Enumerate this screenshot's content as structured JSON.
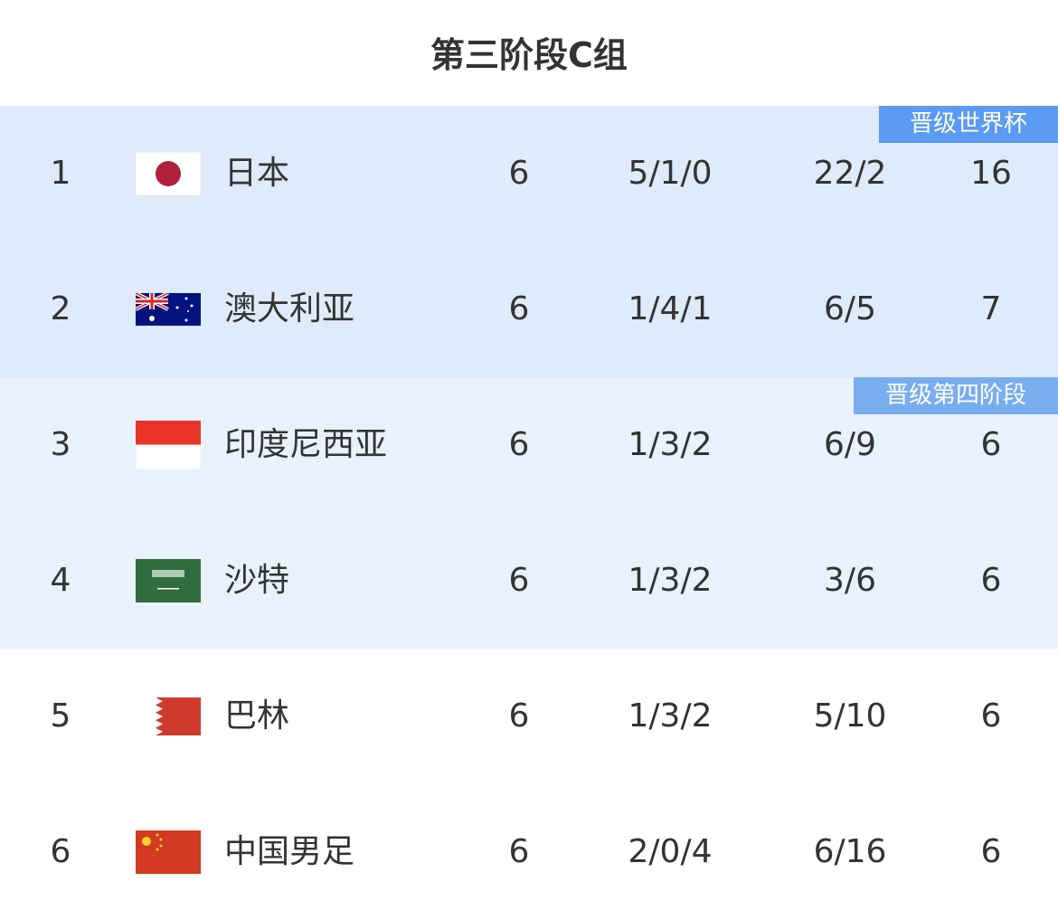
{
  "title": "第三阶段C组",
  "colors": {
    "qualified_bg": "#dfeafb",
    "playoff_bg": "#e8f2fd",
    "qualified_badge": "#5b9af5",
    "playoff_badge": "#78aeef"
  },
  "rows": [
    {
      "rank": "1",
      "flag": "japan-flag",
      "team": "日本",
      "played": "6",
      "wdl": "5/1/0",
      "goals": "22/2",
      "points": "16",
      "badge": "晋级世界杯"
    },
    {
      "rank": "2",
      "flag": "australia-flag",
      "team": "澳大利亚",
      "played": "6",
      "wdl": "1/4/1",
      "goals": "6/5",
      "points": "7"
    },
    {
      "rank": "3",
      "flag": "indonesia-flag",
      "team": "印度尼西亚",
      "played": "6",
      "wdl": "1/3/2",
      "goals": "6/9",
      "points": "6",
      "badge": "晋级第四阶段"
    },
    {
      "rank": "4",
      "flag": "saudi-arabia-flag",
      "team": "沙特",
      "played": "6",
      "wdl": "1/3/2",
      "goals": "3/6",
      "points": "6"
    },
    {
      "rank": "5",
      "flag": "bahrain-flag",
      "team": "巴林",
      "played": "6",
      "wdl": "1/3/2",
      "goals": "5/10",
      "points": "6"
    },
    {
      "rank": "6",
      "flag": "china-flag",
      "team": "中国男足",
      "played": "6",
      "wdl": "2/0/4",
      "goals": "6/16",
      "points": "6"
    }
  ]
}
